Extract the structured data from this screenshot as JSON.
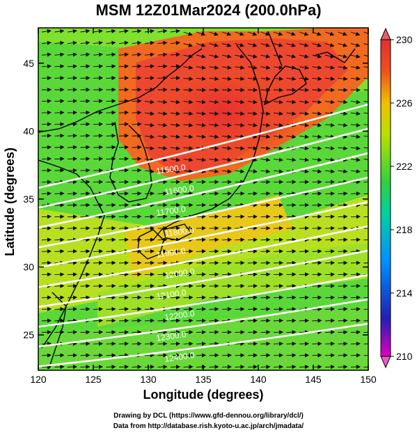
{
  "title": "MSM 12Z01Mar2024 (200.0hPa)",
  "x_axis": {
    "label": "Longitude (degrees)",
    "ticks": [
      "120",
      "125",
      "130",
      "135",
      "140",
      "145",
      "150"
    ],
    "range": [
      120,
      150
    ]
  },
  "y_axis": {
    "label": "Latitude  (degrees)",
    "ticks": [
      "25",
      "30",
      "35",
      "40",
      "45"
    ],
    "range": [
      22.4,
      47.6
    ]
  },
  "colorbar": {
    "ticks": [
      "230",
      "226",
      "222",
      "218",
      "214",
      "210"
    ],
    "range": [
      210,
      230
    ],
    "colors": [
      "#e000c0",
      "#2020b0",
      "#0090ff",
      "#00d0a0",
      "#30d040",
      "#b8e000",
      "#f0c000",
      "#f05020",
      "#e03030"
    ]
  },
  "contours": {
    "labels": [
      "11500.0",
      "11600.0",
      "11700.0",
      "11800.0",
      "11900.0",
      "12000.0",
      "12100.0",
      "12200.0",
      "12300.0",
      "12400.0"
    ],
    "color": "#ffffff"
  },
  "credits": {
    "line1": "Drawing by DCL (https://www.gfd-dennou.org/library/dcl/)",
    "line2": "Data from http://database.rish.kyoto-u.ac.jp/arch/jmadata/"
  }
}
